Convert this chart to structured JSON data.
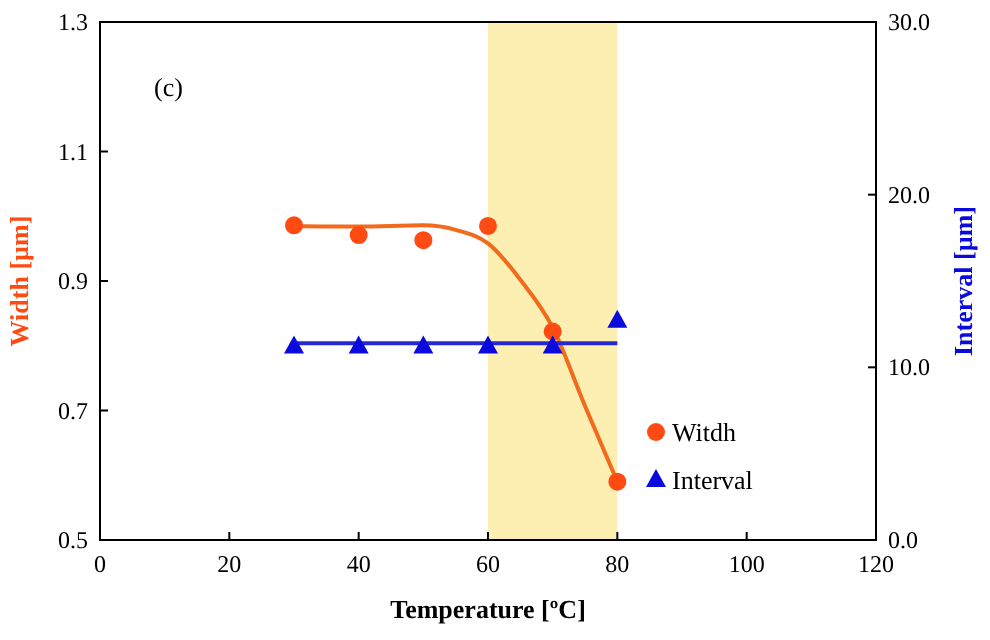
{
  "chart_data": {
    "type": "scatter",
    "xlabel": "Temperature [ºC]",
    "ylabel": "Width [µm]",
    "y2label": "Interval [µm]",
    "annotations": [
      "(c)"
    ],
    "xlim": [
      0,
      120
    ],
    "xticks": [
      0,
      20,
      40,
      60,
      80,
      100,
      120
    ],
    "ylim": [
      0.5,
      1.3
    ],
    "yticks": [
      0.5,
      0.7,
      0.9,
      1.1,
      1.3
    ],
    "y2lim": [
      0,
      30
    ],
    "y2ticks": [
      {
        "value": 0,
        "label": "0.0"
      },
      {
        "value": 10,
        "label": "10.0"
      },
      {
        "value": 20,
        "label": "20.0"
      },
      {
        "value": 30,
        "label": "30.0"
      }
    ],
    "bands": [
      {
        "axis": "x",
        "from": 60,
        "to": 80,
        "color": "#fdefb2"
      }
    ],
    "series": [
      {
        "type": "line",
        "color": "#f26a1b",
        "marker": "none",
        "x": [
          30,
          40,
          50,
          55,
          60,
          65,
          70,
          75,
          80
        ],
        "values": [
          0.985,
          0.984,
          0.986,
          0.979,
          0.958,
          0.902,
          0.828,
          0.707,
          0.59
        ]
      },
      {
        "type": "line",
        "axis": "y2",
        "color": "#2828d0",
        "marker": "none",
        "x": [
          30,
          80
        ],
        "values": [
          11.4,
          11.4
        ]
      },
      {
        "name": "Witdh",
        "color": "#ff4a12",
        "marker": "circle",
        "x": [
          30,
          40,
          50,
          60,
          70,
          80
        ],
        "values": [
          0.986,
          0.971,
          0.963,
          0.985,
          0.822,
          0.59
        ]
      },
      {
        "name": "Interval",
        "axis": "y2",
        "color": "#0a0adc",
        "marker": "triangle",
        "x": [
          30,
          40,
          50,
          60,
          70,
          80
        ],
        "values": [
          11.2,
          11.2,
          11.2,
          11.2,
          11.2,
          12.7
        ]
      }
    ],
    "legend": "bottom right",
    "grid": false
  }
}
